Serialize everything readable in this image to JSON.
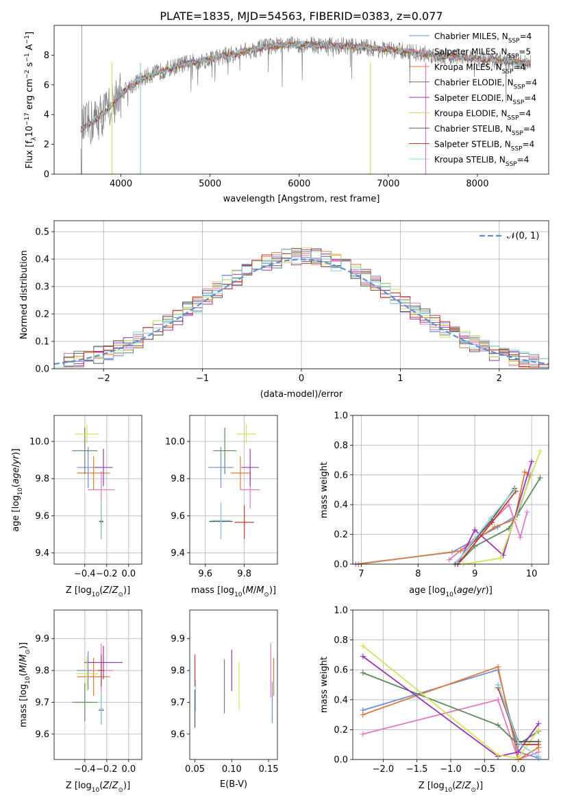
{
  "figure": {
    "title": "PLATE=1835, MJD=54563, FIBERID=0383, z=0.077"
  },
  "colors": {
    "Chabrier MILES": "#6a8fd8",
    "Salpeter MILES": "#e377c2",
    "Kroupa MILES": "#e07b39",
    "Chabrier ELODIE": "#5b8a5b",
    "Salpeter ELODIE": "#9b34b8",
    "Kroupa ELODIE": "#d4e157",
    "Chabrier STELIB": "#555555",
    "Salpeter STELIB": "#c0392b",
    "Kroupa STELIB": "#8fd3e0",
    "data": "#808080",
    "gaussian": "#5b8fd8",
    "grid": "#b0b0b0"
  },
  "chart_data": [
    {
      "id": "spectrum",
      "type": "line",
      "xlabel": "wavelength [Angstrom, rest frame]",
      "ylabel": "Flux [f_λ 10^-17 erg cm^-2 s^-1 A^-1]",
      "xlim": [
        3250,
        8800
      ],
      "ylim": [
        0,
        10
      ],
      "xticks": [
        4000,
        5000,
        6000,
        7000,
        8000
      ],
      "yticks": [
        0,
        2,
        4,
        6,
        8
      ],
      "grid": false,
      "legend_position": "right",
      "legend": [
        {
          "base": "Chabrier MILES, N",
          "sub": "SSP",
          "tail": "=4"
        },
        {
          "base": "Salpeter MILES, N",
          "sub": "SSP",
          "tail": "=5"
        },
        {
          "base": "Kroupa MILES, N",
          "sub": "SSP",
          "tail": "=4"
        },
        {
          "base": "Chabrier ELODIE, N",
          "sub": "SSP",
          "tail": "=4"
        },
        {
          "base": "Salpeter ELODIE, N",
          "sub": "SSP",
          "tail": "=4"
        },
        {
          "base": "Kroupa ELODIE, N",
          "sub": "SSP",
          "tail": "=4"
        },
        {
          "base": "Chabrier STELIB, N",
          "sub": "SSP",
          "tail": "=4"
        },
        {
          "base": "Salpeter STELIB, N",
          "sub": "SSP",
          "tail": "=4"
        },
        {
          "base": "Kroupa STELIB, N",
          "sub": "SSP",
          "tail": "=4"
        }
      ],
      "continuum": {
        "x": [
          3550,
          3700,
          3850,
          3950,
          4100,
          4300,
          4500,
          4700,
          4900,
          5100,
          5300,
          5500,
          5700,
          5900,
          6100,
          6300,
          6500,
          6700,
          6900,
          7100,
          7300,
          7500,
          7700,
          7900,
          8100,
          8300,
          8500,
          8600
        ],
        "y": [
          3.0,
          3.6,
          4.3,
          5.1,
          5.9,
          6.6,
          7.0,
          7.4,
          7.6,
          7.9,
          8.1,
          8.4,
          8.6,
          8.7,
          8.7,
          8.65,
          8.6,
          8.55,
          8.4,
          8.3,
          8.15,
          8.0,
          7.9,
          7.8,
          7.7,
          7.6,
          7.5,
          7.45
        ]
      }
    },
    {
      "id": "residuals",
      "type": "bar",
      "xlabel": "(data-model)/error",
      "ylabel": "Normed distribution",
      "xlim": [
        -2.5,
        2.5
      ],
      "ylim": [
        0,
        0.54
      ],
      "xticks": [
        -2,
        -1,
        0,
        1,
        2
      ],
      "yticks": [
        0.0,
        0.1,
        0.2,
        0.3,
        0.4,
        0.5
      ],
      "grid": true,
      "legend_position": "top-right",
      "gaussian_label": "𝒩(0, 1)",
      "gaussian": {
        "mu": 0,
        "sigma": 1
      }
    },
    {
      "id": "age_vs_Z",
      "type": "scatter",
      "xlabel": "Z [log10(Z/Z⊙)]",
      "ylabel": "age  [log10(age/yr)]",
      "xlim": [
        -0.68,
        0.12
      ],
      "ylim": [
        9.34,
        10.14
      ],
      "xticks": [
        -0.4,
        -0.2,
        0.0
      ],
      "yticks": [
        9.4,
        9.6,
        9.8,
        10.0
      ],
      "grid": true,
      "points": [
        {
          "model": "Chabrier MILES",
          "x": -0.37,
          "y": 9.86,
          "xerr": 0.2,
          "yerr": 0.22
        },
        {
          "model": "Salpeter MILES",
          "x": -0.25,
          "y": 9.74,
          "xerr": 0.25,
          "yerr": 0.2
        },
        {
          "model": "Kroupa MILES",
          "x": -0.32,
          "y": 9.83,
          "xerr": 0.3,
          "yerr": 0.18
        },
        {
          "model": "Chabrier ELODIE",
          "x": -0.4,
          "y": 9.95,
          "xerr": 0.23,
          "yerr": 0.25
        },
        {
          "model": "Salpeter ELODIE",
          "x": -0.23,
          "y": 9.86,
          "xerr": 0.17,
          "yerr": 0.2
        },
        {
          "model": "Kroupa ELODIE",
          "x": -0.38,
          "y": 10.04,
          "xerr": 0.22,
          "yerr": 0.1
        },
        {
          "model": "Chabrier STELIB",
          "x": -0.25,
          "y": 9.57,
          "xerr": 0.04,
          "yerr": 0.19
        },
        {
          "model": "Salpeter STELIB",
          "x": -0.25,
          "y": 9.565,
          "xerr": 0.02,
          "yerr": 0.18
        },
        {
          "model": "Kroupa STELIB",
          "x": -0.25,
          "y": 9.575,
          "xerr": 0.03,
          "yerr": 0.2
        }
      ]
    },
    {
      "id": "age_vs_mass",
      "type": "scatter",
      "xlabel": "mass [log10(M/M⊙)]",
      "ylabel": "",
      "xlim": [
        9.52,
        9.97
      ],
      "ylim": [
        9.34,
        10.14
      ],
      "xticks": [
        9.6,
        9.8
      ],
      "yticks": [
        9.4,
        9.6,
        9.8,
        10.0
      ],
      "grid": true,
      "points": [
        {
          "model": "Chabrier MILES",
          "x": 9.68,
          "y": 9.86,
          "xerr": 0.13,
          "yerr": 0.22
        },
        {
          "model": "Salpeter MILES",
          "x": 9.83,
          "y": 9.74,
          "xerr": 0.1,
          "yerr": 0.2
        },
        {
          "model": "Kroupa MILES",
          "x": 9.78,
          "y": 9.83,
          "xerr": 0.1,
          "yerr": 0.18
        },
        {
          "model": "Chabrier ELODIE",
          "x": 9.7,
          "y": 9.95,
          "xerr": 0.12,
          "yerr": 0.25
        },
        {
          "model": "Salpeter ELODIE",
          "x": 9.83,
          "y": 9.86,
          "xerr": 0.09,
          "yerr": 0.2
        },
        {
          "model": "Kroupa ELODIE",
          "x": 9.81,
          "y": 10.04,
          "xerr": 0.1,
          "yerr": 0.1
        },
        {
          "model": "Chabrier STELIB",
          "x": 9.68,
          "y": 9.57,
          "xerr": 0.12,
          "yerr": 0.19
        },
        {
          "model": "Salpeter STELIB",
          "x": 9.8,
          "y": 9.565,
          "xerr": 0.1,
          "yerr": 0.18
        },
        {
          "model": "Kroupa STELIB",
          "x": 9.68,
          "y": 9.575,
          "xerr": 0.1,
          "yerr": 0.2
        }
      ]
    },
    {
      "id": "weight_vs_age",
      "type": "line",
      "xlabel": "age  [log10(age/yr)]",
      "ylabel": "mass weight",
      "xlim": [
        6.85,
        10.3
      ],
      "ylim": [
        0,
        1.0
      ],
      "xticks": [
        7,
        8,
        9,
        10
      ],
      "yticks": [
        0.0,
        0.2,
        0.4,
        0.6,
        0.8,
        1.0
      ],
      "grid": true,
      "series": [
        {
          "model": "Chabrier MILES",
          "x": [
            6.9,
            8.6,
            9.4,
            9.75,
            9.98
          ],
          "y": [
            0.0,
            0.08,
            0.25,
            0.33,
            0.6
          ]
        },
        {
          "model": "Salpeter MILES",
          "x": [
            8.55,
            9.0,
            9.6,
            9.8,
            9.92
          ],
          "y": [
            0.03,
            0.17,
            0.4,
            0.18,
            0.35
          ]
        },
        {
          "model": "Kroupa MILES",
          "x": [
            6.95,
            8.75,
            9.35,
            9.7,
            9.88,
            9.95
          ],
          "y": [
            0.0,
            0.09,
            0.25,
            0.3,
            0.62,
            0.6
          ]
        },
        {
          "model": "Chabrier ELODIE",
          "x": [
            8.7,
            9.0,
            9.6,
            10.15
          ],
          "y": [
            0.0,
            0.12,
            0.24,
            0.58
          ]
        },
        {
          "model": "Salpeter ELODIE",
          "x": [
            8.7,
            9.0,
            9.5,
            10.0
          ],
          "y": [
            0.0,
            0.23,
            0.06,
            0.69
          ]
        },
        {
          "model": "Kroupa ELODIE",
          "x": [
            8.8,
            9.45,
            10.15
          ],
          "y": [
            0.0,
            0.04,
            0.76
          ]
        },
        {
          "model": "Chabrier STELIB",
          "x": [
            8.65,
            9.3,
            9.7
          ],
          "y": [
            0.0,
            0.3,
            0.51
          ]
        },
        {
          "model": "Salpeter STELIB",
          "x": [
            8.7,
            9.3,
            9.72
          ],
          "y": [
            0.0,
            0.28,
            0.49
          ]
        },
        {
          "model": "Kroupa STELIB",
          "x": [
            8.68,
            9.28,
            9.7
          ],
          "y": [
            0.01,
            0.31,
            0.5
          ]
        }
      ]
    },
    {
      "id": "mass_vs_Z",
      "type": "scatter",
      "xlabel": "Z [log10(Z/Z⊙)]",
      "ylabel": "mass [log10(M/M⊙)]",
      "xlim": [
        -0.68,
        0.12
      ],
      "ylim": [
        9.52,
        9.99
      ],
      "xticks": [
        -0.4,
        -0.2,
        0.0
      ],
      "yticks": [
        9.6,
        9.7,
        9.8,
        9.9
      ],
      "grid": true,
      "points": [
        {
          "model": "Chabrier MILES",
          "x": -0.37,
          "y": 9.8,
          "xerr": 0.2,
          "yerr": 0.12
        },
        {
          "model": "Salpeter MILES",
          "x": -0.25,
          "y": 9.8,
          "xerr": 0.22,
          "yerr": 0.17
        },
        {
          "model": "Kroupa MILES",
          "x": -0.32,
          "y": 9.78,
          "xerr": 0.3,
          "yerr": 0.12
        },
        {
          "model": "Chabrier ELODIE",
          "x": -0.4,
          "y": 9.7,
          "xerr": 0.23,
          "yerr": 0.12
        },
        {
          "model": "Salpeter ELODIE",
          "x": -0.23,
          "y": 9.825,
          "xerr": 0.35,
          "yerr": 0.105
        },
        {
          "model": "Kroupa ELODIE",
          "x": -0.38,
          "y": 9.79,
          "xerr": 0.2,
          "yerr": 0.11
        },
        {
          "model": "Chabrier STELIB",
          "x": -0.25,
          "y": 9.675,
          "xerr": 0.05,
          "yerr": 0.09
        },
        {
          "model": "Salpeter STELIB",
          "x": -0.25,
          "y": 9.8,
          "xerr": 0.06,
          "yerr": 0.1
        },
        {
          "model": "Kroupa STELIB",
          "x": -0.25,
          "y": 9.68,
          "xerr": 0.04,
          "yerr": 0.1
        }
      ]
    },
    {
      "id": "mass_vs_EBV",
      "type": "scatter",
      "xlabel": "E(B-V)",
      "ylabel": "",
      "xlim": [
        0.043,
        0.162
      ],
      "ylim": [
        9.52,
        9.99
      ],
      "xticks": [
        0.05,
        0.1,
        0.15
      ],
      "yticks": [
        9.6,
        9.7,
        9.8,
        9.9
      ],
      "grid": false,
      "points": [
        {
          "model": "Chabrier MILES",
          "x": 0.155,
          "y": 9.7,
          "yerr": 0.13
        },
        {
          "model": "Salpeter MILES",
          "x": 0.153,
          "y": 9.8,
          "yerr": 0.17
        },
        {
          "model": "Kroupa MILES",
          "x": 0.157,
          "y": 9.78,
          "yerr": 0.12
        },
        {
          "model": "Chabrier ELODIE",
          "x": 0.09,
          "y": 9.75,
          "yerr": 0.17
        },
        {
          "model": "Salpeter ELODIE",
          "x": 0.1,
          "y": 9.8,
          "yerr": 0.13
        },
        {
          "model": "Kroupa ELODIE",
          "x": 0.11,
          "y": 9.75,
          "yerr": 0.15
        },
        {
          "model": "Chabrier STELIB",
          "x": 0.05,
          "y": 9.68,
          "yerr": 0.12
        },
        {
          "model": "Salpeter STELIB",
          "x": 0.05,
          "y": 9.8,
          "yerr": 0.1
        },
        {
          "model": "Kroupa STELIB",
          "x": 0.051,
          "y": 9.72,
          "yerr": 0.1
        }
      ]
    },
    {
      "id": "weight_vs_Z",
      "type": "line",
      "xlabel": "Z [log10(Z/Z⊙)]",
      "ylabel": "mass weight",
      "xlim": [
        -2.45,
        0.45
      ],
      "ylim": [
        0,
        1.0
      ],
      "xticks": [
        -2.0,
        -1.5,
        -1.0,
        -0.5,
        0.0
      ],
      "yticks": [
        0.0,
        0.2,
        0.4,
        0.6,
        0.8,
        1.0
      ],
      "grid": true,
      "series": [
        {
          "model": "Chabrier MILES",
          "x": [
            -2.3,
            -0.3,
            0.0,
            0.3
          ],
          "y": [
            0.33,
            0.6,
            0.05,
            0.01
          ]
        },
        {
          "model": "Salpeter MILES",
          "x": [
            -2.3,
            -0.3,
            0.0,
            0.3
          ],
          "y": [
            0.17,
            0.4,
            0.0,
            0.05
          ]
        },
        {
          "model": "Kroupa MILES",
          "x": [
            -2.3,
            -0.3,
            0.0,
            0.3
          ],
          "y": [
            0.3,
            0.62,
            0.0,
            0.08
          ]
        },
        {
          "model": "Chabrier ELODIE",
          "x": [
            -2.3,
            -0.3,
            0.0,
            0.3
          ],
          "y": [
            0.58,
            0.23,
            0.1,
            0.19
          ]
        },
        {
          "model": "Salpeter ELODIE",
          "x": [
            -2.3,
            -0.3,
            0.0,
            0.3
          ],
          "y": [
            0.69,
            0.02,
            0.05,
            0.24
          ]
        },
        {
          "model": "Kroupa ELODIE",
          "x": [
            -2.3,
            -0.3,
            0.0,
            0.3
          ],
          "y": [
            0.76,
            0.03,
            0.01,
            0.2
          ]
        },
        {
          "model": "Chabrier STELIB",
          "x": [
            -0.3,
            0.0,
            0.3
          ],
          "y": [
            0.5,
            0.12,
            0.12
          ]
        },
        {
          "model": "Salpeter STELIB",
          "x": [
            -0.3,
            0.0,
            0.3
          ],
          "y": [
            0.48,
            0.1,
            0.1
          ]
        },
        {
          "model": "Kroupa STELIB",
          "x": [
            -0.3,
            0.0,
            0.3
          ],
          "y": [
            0.5,
            0.11,
            0.02
          ]
        }
      ]
    }
  ]
}
